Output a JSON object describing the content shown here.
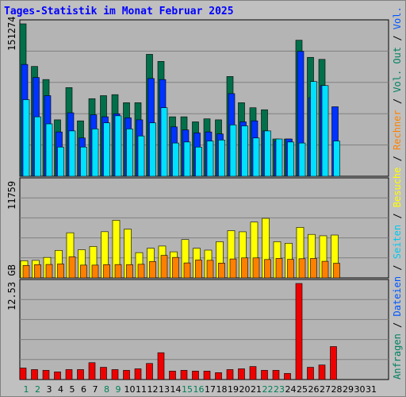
{
  "title": "Tages-Statistik im Monat Februar 2025",
  "colors": {
    "frame_bg": "#c0c0c0",
    "plot_bg": "#b4b4b4",
    "grid": "#808080",
    "anfragen": "#006f4a",
    "dateien": "#0033ff",
    "seiten": "#00e0ff",
    "besuche": "#ffff00",
    "rechner": "#ff8000",
    "volumen": "#ee0000",
    "title": "#0000ff",
    "day_normal": "#000000",
    "day_weekend": "#00805a"
  },
  "right_legend": {
    "top": [
      {
        "text": "Anfragen",
        "color": "#008060"
      },
      {
        "text": " / ",
        "color": "#000000"
      },
      {
        "text": "Dateien",
        "color": "#0055ff"
      },
      {
        "text": " / ",
        "color": "#000000"
      },
      {
        "text": "Seiten",
        "color": "#00c8ee"
      },
      {
        "text": " / ",
        "color": "#000000"
      },
      {
        "text": "Besuche",
        "color": "#ffff00"
      },
      {
        "text": " / ",
        "color": "#000000"
      },
      {
        "text": "Rechner",
        "color": "#ff8000"
      },
      {
        "text": " / ",
        "color": "#000000"
      },
      {
        "text": "Vol. Out",
        "color": "#008060"
      },
      {
        "text": " / ",
        "color": "#000000"
      },
      {
        "text": "Vol. In",
        "color": "#0055ff"
      },
      {
        "text": " / ",
        "color": "#000000"
      },
      {
        "text": "Volumen",
        "color": "#ee0000"
      }
    ]
  },
  "chart_data": [
    {
      "type": "bar",
      "ymax_label": "151274",
      "ylim": [
        0,
        151274
      ],
      "categories": [
        "1",
        "2",
        "3",
        "4",
        "5",
        "6",
        "7",
        "8",
        "9",
        "10",
        "11",
        "12",
        "13",
        "14",
        "15",
        "16",
        "17",
        "18",
        "19",
        "20",
        "21",
        "22",
        "23",
        "24",
        "25",
        "26",
        "27",
        "28",
        "29",
        "30",
        "31"
      ],
      "series": [
        {
          "name": "Anfragen",
          "values": [
            151274,
            109000,
            96000,
            56000,
            88000,
            55000,
            77000,
            80000,
            81000,
            73000,
            73000,
            121000,
            114000,
            59000,
            59000,
            54000,
            57000,
            56000,
            99000,
            73000,
            68000,
            66000,
            37000,
            37000,
            135000,
            118000,
            116000,
            null,
            null,
            null,
            null
          ]
        },
        {
          "name": "Dateien",
          "values": [
            111000,
            98000,
            80000,
            44000,
            63000,
            38000,
            61000,
            59000,
            62000,
            58000,
            56000,
            97000,
            96000,
            49000,
            46000,
            43000,
            44000,
            42000,
            82000,
            54000,
            55000,
            45000,
            35000,
            37000,
            124000,
            78000,
            90000,
            69000,
            null,
            null,
            null
          ]
        },
        {
          "name": "Seiten",
          "values": [
            76000,
            59000,
            52000,
            29000,
            45000,
            29000,
            47000,
            53000,
            60000,
            47000,
            40000,
            53000,
            68000,
            33000,
            34000,
            29000,
            35000,
            36000,
            51000,
            50000,
            38000,
            45000,
            37000,
            34000,
            33000,
            94000,
            90000,
            35000,
            null,
            null,
            null
          ]
        }
      ]
    },
    {
      "type": "bar",
      "ymax_label": "11759",
      "ylim": [
        0,
        11759
      ],
      "categories": [
        "1",
        "2",
        "3",
        "4",
        "5",
        "6",
        "7",
        "8",
        "9",
        "10",
        "11",
        "12",
        "13",
        "14",
        "15",
        "16",
        "17",
        "18",
        "19",
        "20",
        "21",
        "22",
        "23",
        "24",
        "25",
        "26",
        "27",
        "28",
        "29",
        "30",
        "31"
      ],
      "series": [
        {
          "name": "Besuche",
          "values": [
            2120,
            2160,
            2530,
            3400,
            5570,
            3480,
            3880,
            5700,
            7110,
            6020,
            3120,
            3660,
            3930,
            3220,
            4730,
            3660,
            3430,
            4470,
            5830,
            5690,
            6890,
            7350,
            4470,
            4280,
            6240,
            5370,
            5200,
            5290,
            null,
            null,
            null
          ]
        },
        {
          "name": "Rechner",
          "values": [
            1540,
            1640,
            1660,
            1720,
            2600,
            1580,
            1580,
            1640,
            1650,
            1640,
            1680,
            2020,
            2780,
            2530,
            1850,
            2210,
            2170,
            1830,
            2340,
            2470,
            2470,
            2270,
            2410,
            2290,
            2370,
            2400,
            2050,
            1810,
            null,
            null,
            null
          ]
        }
      ]
    },
    {
      "type": "bar",
      "ymax_label": "12.53 GB",
      "ylim": [
        0,
        12.53
      ],
      "categories": [
        "1",
        "2",
        "3",
        "4",
        "5",
        "6",
        "7",
        "8",
        "9",
        "10",
        "11",
        "12",
        "13",
        "14",
        "15",
        "16",
        "17",
        "18",
        "19",
        "20",
        "21",
        "22",
        "23",
        "24",
        "25",
        "26",
        "27",
        "28",
        "29",
        "30",
        "31"
      ],
      "series": [
        {
          "name": "Volumen",
          "values": [
            1.5,
            1.3,
            1.2,
            1.0,
            1.3,
            1.3,
            2.2,
            1.6,
            1.3,
            1.2,
            1.4,
            2.1,
            3.5,
            1.1,
            1.2,
            1.1,
            1.1,
            0.9,
            1.3,
            1.4,
            1.7,
            1.2,
            1.2,
            0.8,
            12.53,
            1.6,
            1.9,
            4.3,
            null,
            null,
            null
          ]
        }
      ]
    }
  ],
  "weekend_days": [
    "1",
    "2",
    "8",
    "9",
    "15",
    "16",
    "22",
    "23"
  ]
}
